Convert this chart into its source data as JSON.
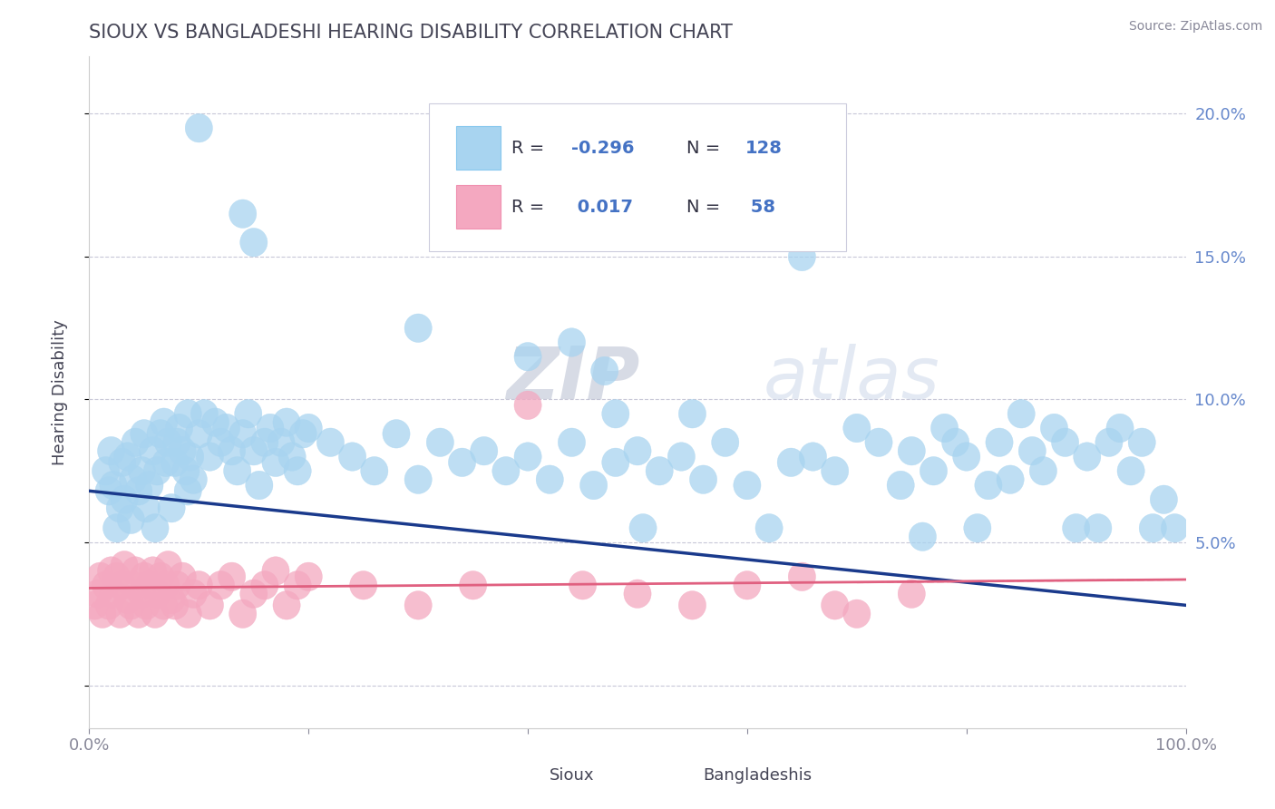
{
  "title": "SIOUX VS BANGLADESHI HEARING DISABILITY CORRELATION CHART",
  "source": "Source: ZipAtlas.com",
  "ylabel": "Hearing Disability",
  "xlim": [
    0,
    100
  ],
  "ylim": [
    -1.5,
    22
  ],
  "ytick_vals": [
    0,
    5,
    10,
    15,
    20
  ],
  "ytick_labels": [
    "",
    "5.0%",
    "10.0%",
    "15.0%",
    "20.0%"
  ],
  "xtick_vals": [
    0,
    20,
    40,
    60,
    80,
    100
  ],
  "xtick_labels": [
    "0.0%",
    "",
    "",
    "",
    "",
    "100.0%"
  ],
  "sioux_color": "#a8d4f0",
  "bangladeshi_color": "#f4a8c0",
  "line1_color": "#1a3a8c",
  "line2_color": "#e06080",
  "line2_dash": "#e06080",
  "grid_color": "#c8c8d8",
  "watermark_zip": "ZIP",
  "watermark_atlas": "atlas",
  "title_color": "#444455",
  "axis_color": "#6688cc",
  "tick_color": "#888899",
  "line1_start_x": 0,
  "line1_start_y": 6.8,
  "line1_end_x": 100,
  "line1_end_y": 2.8,
  "line2_start_x": 0,
  "line2_start_y": 3.4,
  "line2_end_x": 100,
  "line2_end_y": 3.7,
  "sioux_points": [
    [
      1.5,
      7.5
    ],
    [
      1.8,
      6.8
    ],
    [
      2.0,
      8.2
    ],
    [
      2.2,
      7.0
    ],
    [
      2.5,
      5.5
    ],
    [
      2.8,
      6.2
    ],
    [
      3.0,
      7.8
    ],
    [
      3.2,
      6.5
    ],
    [
      3.5,
      8.0
    ],
    [
      3.8,
      5.8
    ],
    [
      4.0,
      7.2
    ],
    [
      4.2,
      8.5
    ],
    [
      4.5,
      6.8
    ],
    [
      4.8,
      7.5
    ],
    [
      5.0,
      8.8
    ],
    [
      5.2,
      6.2
    ],
    [
      5.5,
      7.0
    ],
    [
      5.8,
      8.2
    ],
    [
      6.0,
      5.5
    ],
    [
      6.2,
      7.5
    ],
    [
      6.5,
      8.8
    ],
    [
      6.8,
      9.2
    ],
    [
      7.0,
      7.8
    ],
    [
      7.2,
      8.5
    ],
    [
      7.5,
      6.2
    ],
    [
      7.8,
      7.8
    ],
    [
      8.0,
      8.5
    ],
    [
      8.2,
      9.0
    ],
    [
      8.5,
      8.2
    ],
    [
      8.8,
      7.5
    ],
    [
      9.0,
      6.8
    ],
    [
      9.2,
      8.0
    ],
    [
      9.5,
      7.2
    ],
    [
      10.0,
      8.8
    ],
    [
      10.5,
      9.5
    ],
    [
      11.0,
      8.0
    ],
    [
      11.5,
      9.2
    ],
    [
      12.0,
      8.5
    ],
    [
      12.5,
      9.0
    ],
    [
      13.0,
      8.2
    ],
    [
      13.5,
      7.5
    ],
    [
      14.0,
      8.8
    ],
    [
      14.5,
      9.5
    ],
    [
      15.0,
      8.2
    ],
    [
      15.5,
      7.0
    ],
    [
      16.0,
      8.5
    ],
    [
      16.5,
      9.0
    ],
    [
      17.0,
      7.8
    ],
    [
      17.5,
      8.5
    ],
    [
      18.0,
      9.2
    ],
    [
      18.5,
      8.0
    ],
    [
      19.0,
      7.5
    ],
    [
      19.5,
      8.8
    ],
    [
      20.0,
      9.0
    ],
    [
      22.0,
      8.5
    ],
    [
      24.0,
      8.0
    ],
    [
      26.0,
      7.5
    ],
    [
      28.0,
      8.8
    ],
    [
      30.0,
      7.2
    ],
    [
      32.0,
      8.5
    ],
    [
      34.0,
      7.8
    ],
    [
      36.0,
      8.2
    ],
    [
      38.0,
      7.5
    ],
    [
      40.0,
      8.0
    ],
    [
      42.0,
      7.2
    ],
    [
      44.0,
      8.5
    ],
    [
      46.0,
      7.0
    ],
    [
      48.0,
      7.8
    ],
    [
      50.0,
      8.2
    ],
    [
      50.5,
      5.5
    ],
    [
      52.0,
      7.5
    ],
    [
      54.0,
      8.0
    ],
    [
      56.0,
      7.2
    ],
    [
      58.0,
      8.5
    ],
    [
      60.0,
      7.0
    ],
    [
      62.0,
      5.5
    ],
    [
      64.0,
      7.8
    ],
    [
      66.0,
      8.0
    ],
    [
      68.0,
      7.5
    ],
    [
      70.0,
      9.0
    ],
    [
      72.0,
      8.5
    ],
    [
      74.0,
      7.0
    ],
    [
      75.0,
      8.2
    ],
    [
      76.0,
      5.2
    ],
    [
      77.0,
      7.5
    ],
    [
      78.0,
      9.0
    ],
    [
      79.0,
      8.5
    ],
    [
      80.0,
      8.0
    ],
    [
      81.0,
      5.5
    ],
    [
      82.0,
      7.0
    ],
    [
      83.0,
      8.5
    ],
    [
      84.0,
      7.2
    ],
    [
      85.0,
      9.5
    ],
    [
      86.0,
      8.2
    ],
    [
      87.0,
      7.5
    ],
    [
      88.0,
      9.0
    ],
    [
      89.0,
      8.5
    ],
    [
      90.0,
      5.5
    ],
    [
      91.0,
      8.0
    ],
    [
      92.0,
      5.5
    ],
    [
      93.0,
      8.5
    ],
    [
      94.0,
      9.0
    ],
    [
      95.0,
      7.5
    ],
    [
      96.0,
      8.5
    ],
    [
      97.0,
      5.5
    ],
    [
      98.0,
      6.5
    ],
    [
      99.0,
      5.5
    ],
    [
      10.0,
      19.5
    ],
    [
      14.0,
      16.5
    ],
    [
      15.0,
      15.5
    ],
    [
      65.0,
      15.0
    ],
    [
      30.0,
      12.5
    ],
    [
      40.0,
      11.5
    ],
    [
      44.0,
      12.0
    ],
    [
      47.0,
      11.0
    ],
    [
      9.0,
      9.5
    ],
    [
      55.0,
      9.5
    ],
    [
      48.0,
      9.5
    ]
  ],
  "bangladeshi_points": [
    [
      0.5,
      2.8
    ],
    [
      0.8,
      3.2
    ],
    [
      1.0,
      3.8
    ],
    [
      1.2,
      2.5
    ],
    [
      1.5,
      3.5
    ],
    [
      1.8,
      2.8
    ],
    [
      2.0,
      4.0
    ],
    [
      2.2,
      3.2
    ],
    [
      2.5,
      3.8
    ],
    [
      2.8,
      2.5
    ],
    [
      3.0,
      3.5
    ],
    [
      3.2,
      4.2
    ],
    [
      3.5,
      3.0
    ],
    [
      3.8,
      2.8
    ],
    [
      4.0,
      3.5
    ],
    [
      4.2,
      4.0
    ],
    [
      4.5,
      2.5
    ],
    [
      4.8,
      3.2
    ],
    [
      5.0,
      3.8
    ],
    [
      5.2,
      2.8
    ],
    [
      5.5,
      3.5
    ],
    [
      5.8,
      4.0
    ],
    [
      6.0,
      2.5
    ],
    [
      6.2,
      3.2
    ],
    [
      6.5,
      3.8
    ],
    [
      6.8,
      2.8
    ],
    [
      7.0,
      3.5
    ],
    [
      7.2,
      4.2
    ],
    [
      7.5,
      3.0
    ],
    [
      7.8,
      2.8
    ],
    [
      8.0,
      3.5
    ],
    [
      8.5,
      3.8
    ],
    [
      9.0,
      2.5
    ],
    [
      9.5,
      3.2
    ],
    [
      10.0,
      3.5
    ],
    [
      11.0,
      2.8
    ],
    [
      12.0,
      3.5
    ],
    [
      13.0,
      3.8
    ],
    [
      14.0,
      2.5
    ],
    [
      15.0,
      3.2
    ],
    [
      16.0,
      3.5
    ],
    [
      17.0,
      4.0
    ],
    [
      18.0,
      2.8
    ],
    [
      19.0,
      3.5
    ],
    [
      20.0,
      3.8
    ],
    [
      25.0,
      3.5
    ],
    [
      30.0,
      2.8
    ],
    [
      35.0,
      3.5
    ],
    [
      40.0,
      9.8
    ],
    [
      45.0,
      3.5
    ],
    [
      50.0,
      3.2
    ],
    [
      55.0,
      2.8
    ],
    [
      60.0,
      3.5
    ],
    [
      65.0,
      3.8
    ],
    [
      70.0,
      2.5
    ],
    [
      75.0,
      3.2
    ],
    [
      68.0,
      2.8
    ]
  ],
  "background_color": "#ffffff"
}
